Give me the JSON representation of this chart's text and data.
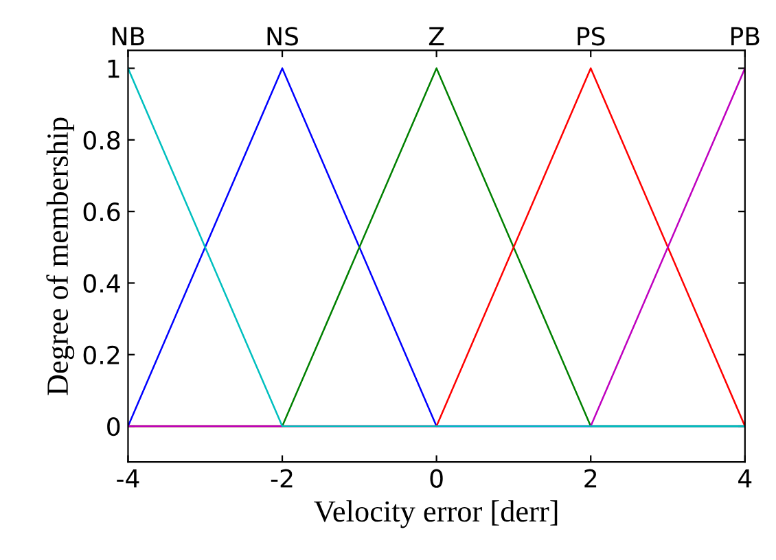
{
  "chart_data": {
    "type": "line",
    "xlabel": "Velocity error [derr]",
    "ylabel": "Degree of membership",
    "series": [
      {
        "name": "NS",
        "color": "#0000ff",
        "x": [
          -4,
          -2,
          0,
          4
        ],
        "values": [
          0,
          1,
          0,
          0
        ]
      },
      {
        "name": "Z",
        "color": "#008000",
        "x": [
          -4,
          -2,
          0,
          2,
          4
        ],
        "values": [
          0,
          0,
          1,
          0,
          0
        ]
      },
      {
        "name": "PS",
        "color": "#ff0000",
        "x": [
          -4,
          0,
          2,
          4
        ],
        "values": [
          0,
          0,
          1,
          0
        ]
      },
      {
        "name": "PB",
        "color": "#bf00bf",
        "x": [
          -4,
          2,
          4
        ],
        "values": [
          0,
          0,
          1
        ]
      },
      {
        "name": "NB",
        "color": "#00bfbf",
        "x": [
          -4,
          -2,
          4
        ],
        "values": [
          1,
          0,
          0
        ]
      }
    ],
    "xlim": [
      -4,
      4
    ],
    "xticks": [
      -4,
      -2,
      0,
      2,
      4
    ],
    "ylim": [
      -0.1,
      1.05
    ],
    "yticks": [
      0,
      0.2,
      0.4,
      0.6,
      0.8,
      1
    ],
    "grid": false,
    "legend": false,
    "marker": "none",
    "line_style": "solid"
  }
}
